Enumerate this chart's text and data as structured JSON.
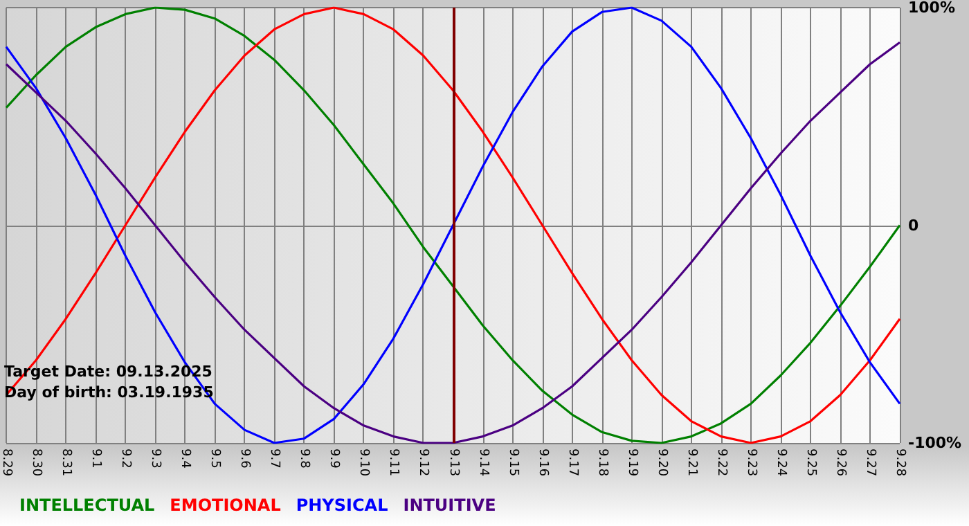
{
  "chart_data": {
    "type": "line",
    "categories": [
      "8.29",
      "8.30",
      "8.31",
      "9.1",
      "9.2",
      "9.3",
      "9.4",
      "9.5",
      "9.6",
      "9.7",
      "9.8",
      "9.9",
      "9.10",
      "9.11",
      "9.12",
      "9.13",
      "9.14",
      "9.15",
      "9.16",
      "9.17",
      "9.18",
      "9.19",
      "9.20",
      "9.21",
      "9.22",
      "9.23",
      "9.24",
      "9.25",
      "9.26",
      "9.27",
      "9.28"
    ],
    "series": [
      {
        "name": "INTELLECTUAL",
        "color": "#008000",
        "values": [
          54,
          69,
          82,
          91,
          97,
          100,
          99,
          95,
          87,
          76,
          62,
          46,
          28,
          10,
          -10,
          -28,
          -46,
          -62,
          -76,
          -87,
          -95,
          -99,
          -100,
          -97,
          -91,
          -82,
          -69,
          -54,
          -37,
          -19,
          0
        ]
      },
      {
        "name": "EMOTIONAL",
        "color": "#ff0000",
        "values": [
          -78,
          -62,
          -43,
          -22,
          0,
          22,
          43,
          62,
          78,
          90,
          97,
          100,
          97,
          90,
          78,
          62,
          43,
          22,
          0,
          -22,
          -43,
          -62,
          -78,
          -90,
          -97,
          -100,
          -97,
          -90,
          -78,
          -62,
          -43
        ]
      },
      {
        "name": "PHYSICAL",
        "color": "#0000ff",
        "values": [
          82,
          63,
          40,
          14,
          -14,
          -40,
          -63,
          -82,
          -94,
          -100,
          -98,
          -89,
          -73,
          -52,
          -27,
          0,
          27,
          52,
          73,
          89,
          98,
          100,
          94,
          82,
          63,
          40,
          14,
          -14,
          -40,
          -63,
          -82
        ]
      },
      {
        "name": "INTUITIVE",
        "color": "#4b0082",
        "values": [
          74,
          61,
          48,
          33,
          17,
          0,
          -17,
          -33,
          -48,
          -61,
          -74,
          -84,
          -92,
          -97,
          -100,
          -100,
          -97,
          -92,
          -84,
          -74,
          -61,
          -48,
          -33,
          -17,
          0,
          17,
          33,
          48,
          61,
          74,
          84
        ]
      }
    ],
    "ylim": [
      -100,
      100
    ],
    "yticks": [
      {
        "value": -100,
        "label": "-100%"
      },
      0,
      {
        "value": 100,
        "label": "100%"
      }
    ],
    "grid": true,
    "legend": "bottom left",
    "marker": "none",
    "line_style": "solid",
    "ref_lines": [
      {
        "axis": "x",
        "value": "9.13",
        "color": "#800000"
      }
    ],
    "annotations": [
      "Target Date: 09.13.2025",
      "Day of birth: 03.19.1935"
    ]
  }
}
